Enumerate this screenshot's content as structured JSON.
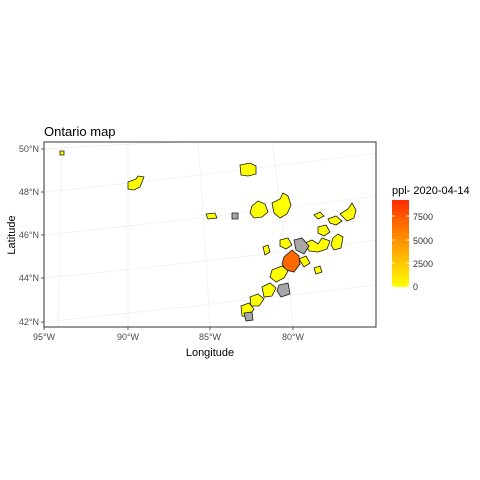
{
  "title": "Ontario map",
  "x_axis": {
    "label": "Longitude",
    "ticks": [
      "95°W",
      "90°W",
      "85°W",
      "80°W"
    ]
  },
  "y_axis": {
    "label": "Latitude",
    "ticks": [
      "42°N",
      "44°N",
      "46°N",
      "48°N",
      "50°N"
    ]
  },
  "legend": {
    "title": "ppl- 2020-04-14",
    "ticks": [
      "0",
      "2500",
      "5000",
      "7500"
    ],
    "scale_min": 0,
    "scale_max": 9000,
    "colors": [
      "#ffff00",
      "#ffcc00",
      "#ff9900",
      "#ff6600",
      "#ff2a00"
    ],
    "placement": "right",
    "no_data_color": "#a6a6a6"
  },
  "chart_data": {
    "type": "choropleth",
    "title": "Ontario map",
    "xlabel": "Longitude",
    "ylabel": "Latitude",
    "fill_variable": "ppl- 2020-04-14",
    "xlim": [
      -95,
      -75
    ],
    "ylim": [
      42,
      50
    ],
    "grid": true
  }
}
